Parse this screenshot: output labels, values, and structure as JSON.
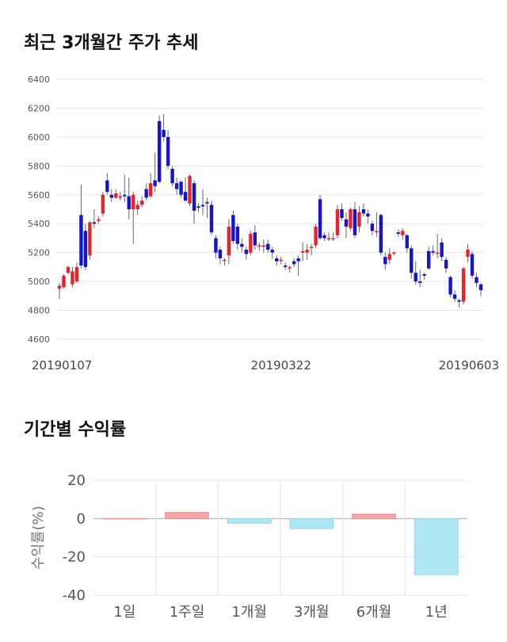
{
  "titles": {
    "candle": "최근 3개월간 주가 추세",
    "returns": "기간별 수익률"
  },
  "colors": {
    "up": "#e8232a",
    "down": "#1414cc",
    "pos_bar": "#f7a5a8",
    "neg_bar": "#aee8f3"
  },
  "chart_data": [
    {
      "type": "candlestick",
      "title": "최근 3개월간 주가 추세",
      "ylim": [
        4600,
        6400
      ],
      "yticks": [
        4600,
        4800,
        5000,
        5200,
        5400,
        5600,
        5800,
        6000,
        6200,
        6400
      ],
      "xtick_labels": [
        {
          "label": "20190107",
          "index": 0
        },
        {
          "label": "20190322",
          "index": 51
        },
        {
          "label": "20190603",
          "index": 100
        }
      ],
      "candles": [
        [
          4950,
          4970,
          4880,
          4990
        ],
        [
          4960,
          5040,
          4950,
          5050
        ],
        [
          5060,
          5100,
          5050,
          5110
        ],
        [
          4980,
          5070,
          4960,
          5100
        ],
        [
          5000,
          5100,
          4990,
          5130
        ],
        [
          5460,
          5110,
          5090,
          5670
        ],
        [
          5350,
          5100,
          5080,
          5400
        ],
        [
          5180,
          5410,
          5150,
          5420
        ],
        [
          5410,
          5400,
          5370,
          5500
        ],
        [
          5420,
          5430,
          5400,
          5450
        ],
        [
          5470,
          5600,
          5450,
          5620
        ],
        [
          5700,
          5620,
          5600,
          5750
        ],
        [
          5600,
          5580,
          5550,
          5640
        ],
        [
          5580,
          5610,
          5570,
          5640
        ],
        [
          5580,
          5590,
          5560,
          5620
        ],
        [
          5600,
          5590,
          5550,
          5740
        ],
        [
          5590,
          5500,
          5430,
          5720
        ],
        [
          5500,
          5600,
          5260,
          5620
        ],
        [
          5500,
          5530,
          5460,
          5560
        ],
        [
          5530,
          5560,
          5510,
          5590
        ],
        [
          5640,
          5580,
          5560,
          5680
        ],
        [
          5590,
          5680,
          5580,
          5750
        ],
        [
          5700,
          5660,
          5620,
          5890
        ],
        [
          6110,
          5690,
          5680,
          6150
        ],
        [
          6050,
          6000,
          5970,
          6160
        ],
        [
          6000,
          5800,
          5780,
          6050
        ],
        [
          5780,
          5680,
          5660,
          5800
        ],
        [
          5680,
          5640,
          5600,
          5720
        ],
        [
          5690,
          5600,
          5580,
          5700
        ],
        [
          5620,
          5560,
          5550,
          5720
        ],
        [
          5540,
          5730,
          5520,
          5740
        ],
        [
          5680,
          5490,
          5400,
          5700
        ],
        [
          5520,
          5510,
          5480,
          5540
        ],
        [
          5530,
          5520,
          5460,
          5640
        ],
        [
          5550,
          5540,
          5440,
          5580
        ],
        [
          5530,
          5340,
          5320,
          5560
        ],
        [
          5300,
          5200,
          5160,
          5320
        ],
        [
          5220,
          5160,
          5120,
          5240
        ],
        [
          5150,
          5150,
          5110,
          5160
        ],
        [
          5180,
          5380,
          5120,
          5430
        ],
        [
          5460,
          5280,
          5260,
          5490
        ],
        [
          5380,
          5260,
          5220,
          5400
        ],
        [
          5260,
          5240,
          5200,
          5300
        ],
        [
          5220,
          5190,
          5150,
          5240
        ],
        [
          5200,
          5330,
          5180,
          5350
        ],
        [
          5340,
          5250,
          5220,
          5390
        ],
        [
          5250,
          5250,
          5210,
          5270
        ],
        [
          5240,
          5250,
          5200,
          5290
        ],
        [
          5260,
          5220,
          5200,
          5290
        ],
        [
          5220,
          5200,
          5160,
          5240
        ],
        [
          5160,
          5140,
          5110,
          5180
        ],
        [
          5150,
          5150,
          5120,
          5170
        ],
        [
          5110,
          5100,
          5080,
          5130
        ],
        [
          5100,
          5100,
          5060,
          5110
        ],
        [
          5140,
          5120,
          5100,
          5160
        ],
        [
          5160,
          5140,
          5040,
          5180
        ],
        [
          5200,
          5210,
          5140,
          5270
        ],
        [
          5200,
          5220,
          5150,
          5260
        ],
        [
          5240,
          5240,
          5180,
          5260
        ],
        [
          5250,
          5380,
          5230,
          5400
        ],
        [
          5570,
          5300,
          5290,
          5600
        ],
        [
          5320,
          5300,
          5280,
          5340
        ],
        [
          5300,
          5300,
          5280,
          5340
        ],
        [
          5300,
          5300,
          5280,
          5340
        ],
        [
          5320,
          5500,
          5300,
          5530
        ],
        [
          5500,
          5440,
          5420,
          5540
        ],
        [
          5430,
          5380,
          5300,
          5480
        ],
        [
          5370,
          5500,
          5350,
          5510
        ],
        [
          5500,
          5320,
          5300,
          5550
        ],
        [
          5380,
          5480,
          5340,
          5520
        ],
        [
          5500,
          5470,
          5450,
          5540
        ],
        [
          5470,
          5450,
          5400,
          5500
        ],
        [
          5400,
          5350,
          5320,
          5420
        ],
        [
          5340,
          5350,
          5310,
          5480
        ],
        [
          5460,
          5200,
          5180,
          5470
        ],
        [
          5170,
          5120,
          5080,
          5200
        ],
        [
          5150,
          5190,
          5120,
          5230
        ],
        [
          5200,
          5200,
          5180,
          5210
        ],
        [
          5340,
          5330,
          5310,
          5360
        ],
        [
          5320,
          5350,
          5290,
          5370
        ],
        [
          5320,
          5230,
          5200,
          5330
        ],
        [
          5230,
          5060,
          5020,
          5250
        ],
        [
          5060,
          5000,
          4980,
          5140
        ],
        [
          5000,
          4990,
          4960,
          5080
        ],
        [
          5050,
          5040,
          5010,
          5060
        ],
        [
          5210,
          5090,
          5080,
          5240
        ],
        [
          5210,
          5200,
          5180,
          5250
        ],
        [
          5200,
          5200,
          5160,
          5330
        ],
        [
          5270,
          5170,
          5140,
          5300
        ],
        [
          5150,
          5090,
          5060,
          5170
        ],
        [
          5030,
          4910,
          4890,
          5040
        ],
        [
          4910,
          4880,
          4860,
          4940
        ],
        [
          4870,
          4860,
          4820,
          4880
        ],
        [
          4860,
          5090,
          4840,
          5100
        ],
        [
          5170,
          5220,
          5130,
          5260
        ],
        [
          5190,
          5040,
          5020,
          5210
        ],
        [
          5030,
          4990,
          4960,
          5060
        ],
        [
          4980,
          4940,
          4900,
          4990
        ]
      ]
    },
    {
      "type": "bar",
      "title": "기간별 수익률",
      "ylabel": "수익률(%)",
      "ylim": [
        -40,
        20
      ],
      "yticks": [
        20,
        0,
        -20,
        -40
      ],
      "categories": [
        "1일",
        "1주일",
        "1개월",
        "3개월",
        "6개월",
        "1년"
      ],
      "values": [
        0.0,
        3.2,
        -2.4,
        -5.2,
        2.3,
        -29.3
      ]
    }
  ]
}
